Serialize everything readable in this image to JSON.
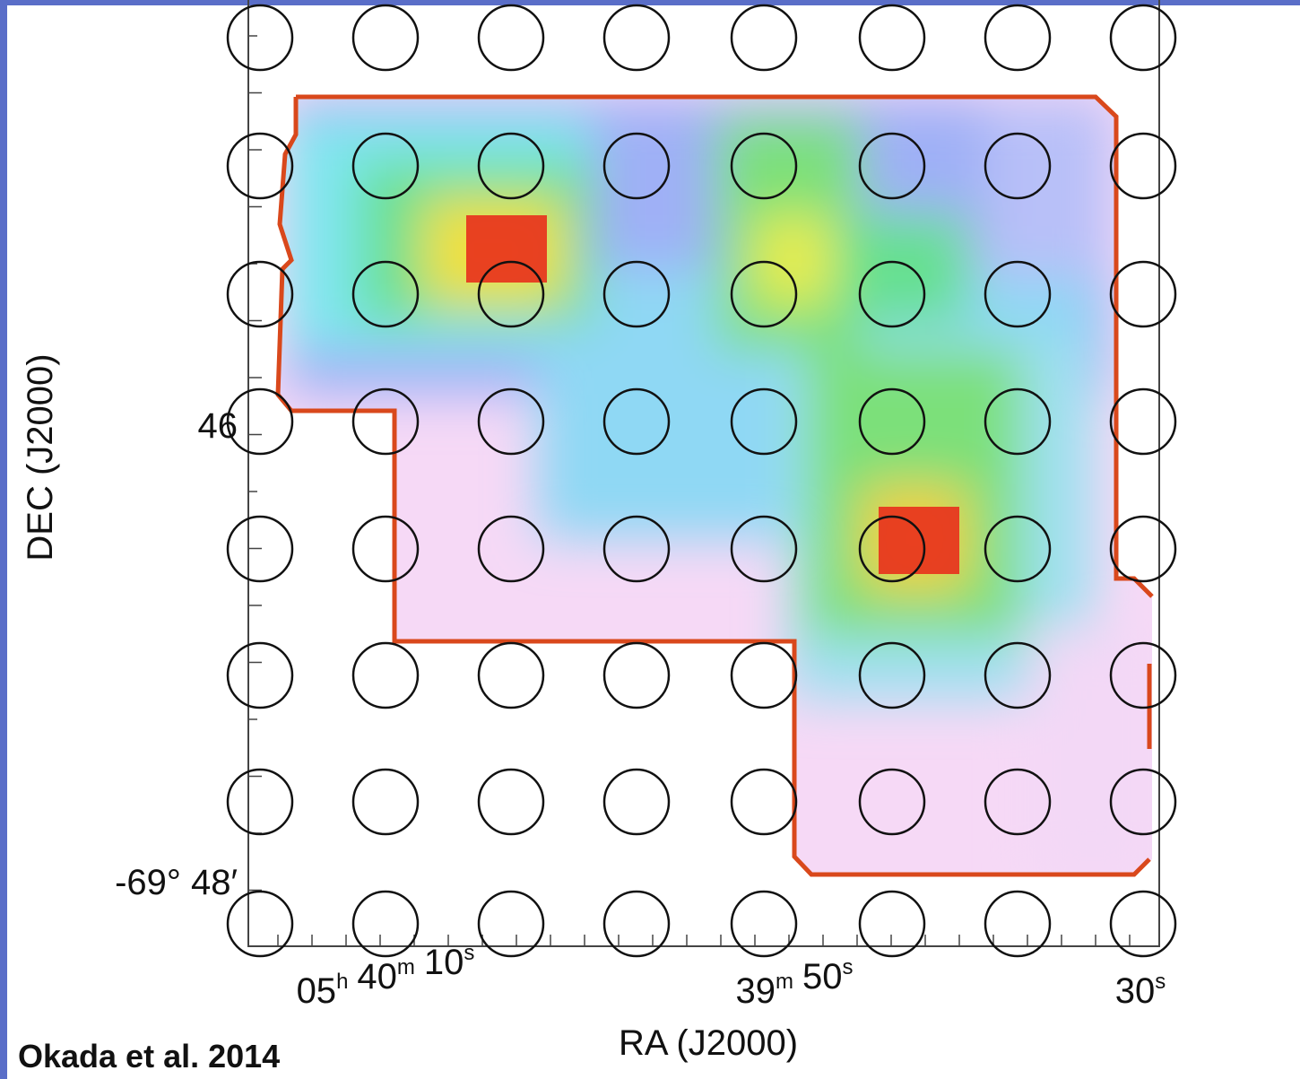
{
  "figure": {
    "y_label": "DEC (J2000)",
    "x_label": "RA (J2000)",
    "y_ticks": [
      "46",
      "-69° 48′"
    ],
    "x_ticks": [
      [
        [
          "05",
          "h"
        ],
        [
          "40",
          "m"
        ],
        [
          "10",
          "s"
        ]
      ],
      [
        [
          "39",
          "m"
        ],
        [
          "50",
          "s"
        ]
      ],
      [
        [
          "30",
          "s"
        ]
      ]
    ]
  },
  "credit": "Okada et al. 2014"
}
